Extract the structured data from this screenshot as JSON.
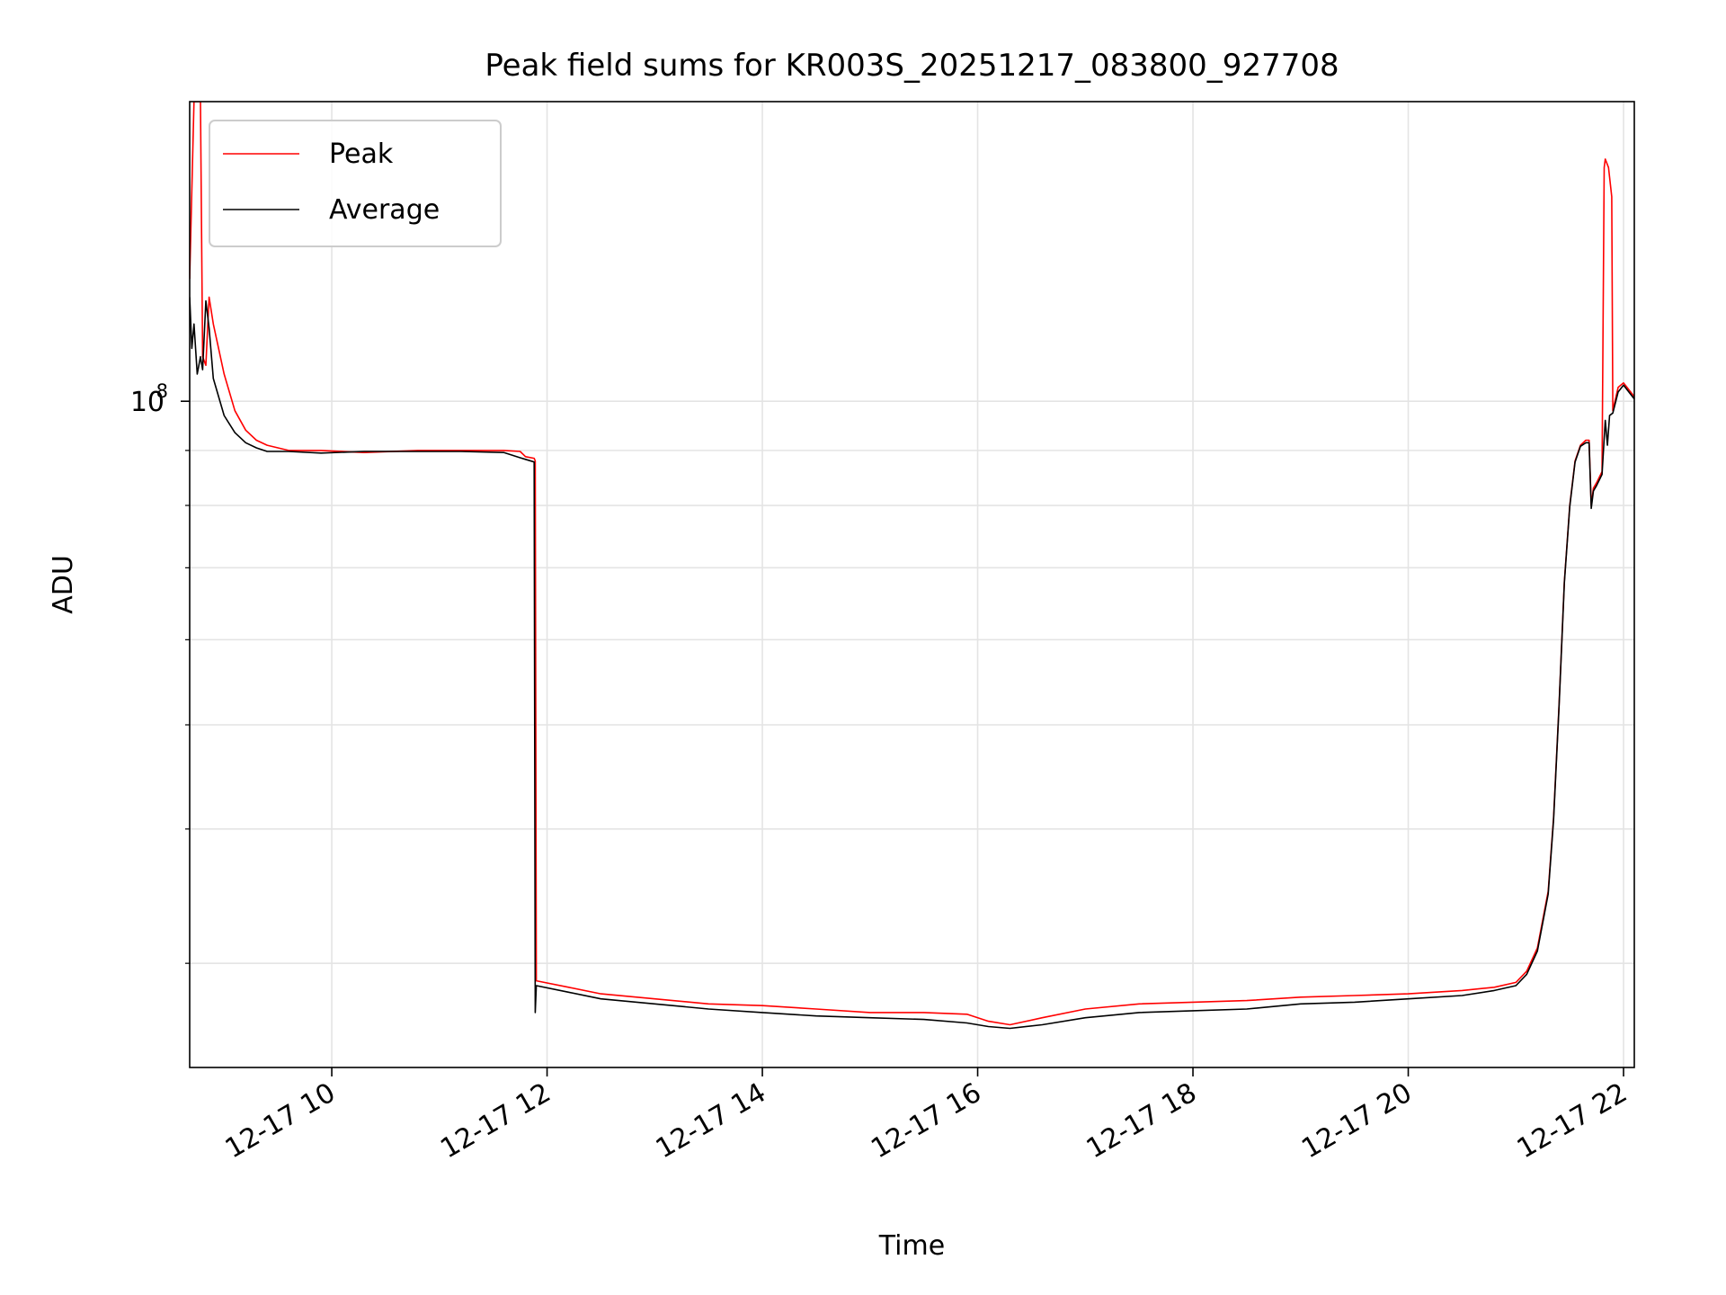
{
  "chart_data": {
    "type": "line",
    "title": "Peak field sums for KR003S_20251217_083800_927708",
    "xlabel": "Time",
    "ylabel": "ADU",
    "yscale": "log",
    "ylim": [
      24000000,
      190000000
    ],
    "xlim": [
      8.68,
      22.1
    ],
    "x_unit": "hours on 12-17",
    "grid": true,
    "legend_position": "upper-left",
    "y_major_ticks": [
      {
        "value": 100000000,
        "base": "10",
        "exponent": "8"
      }
    ],
    "y_minor_ticks": [
      30000000,
      40000000,
      50000000,
      60000000,
      70000000,
      80000000,
      90000000
    ],
    "x_ticks": [
      {
        "value": 10,
        "label": "12-17 10"
      },
      {
        "value": 12,
        "label": "12-17 12"
      },
      {
        "value": 14,
        "label": "12-17 14"
      },
      {
        "value": 16,
        "label": "12-17 16"
      },
      {
        "value": 18,
        "label": "12-17 18"
      },
      {
        "value": 20,
        "label": "12-17 20"
      },
      {
        "value": 22,
        "label": "12-17 22"
      }
    ],
    "series": [
      {
        "name": "Peak",
        "color": "#ff0000",
        "x": [
          8.68,
          8.72,
          8.75,
          8.78,
          8.8,
          8.83,
          8.86,
          8.9,
          9.0,
          9.1,
          9.2,
          9.3,
          9.4,
          9.6,
          9.9,
          10.3,
          10.8,
          11.2,
          11.6,
          11.75,
          11.8,
          11.88,
          11.89,
          11.9,
          12.2,
          12.5,
          13.0,
          13.5,
          14.0,
          14.5,
          15.0,
          15.5,
          15.9,
          16.1,
          16.3,
          16.6,
          17.0,
          17.5,
          18.0,
          18.5,
          19.0,
          19.5,
          20.0,
          20.5,
          20.8,
          21.0,
          21.1,
          21.2,
          21.3,
          21.35,
          21.4,
          21.45,
          21.5,
          21.55,
          21.6,
          21.65,
          21.68,
          21.7,
          21.72,
          21.75,
          21.8,
          21.82,
          21.83,
          21.86,
          21.89,
          21.9,
          21.95,
          22.0,
          22.1
        ],
        "values": [
          130000000,
          190000000,
          190000000,
          190000000,
          110000000,
          108000000,
          125000000,
          118000000,
          106000000,
          98000000,
          94000000,
          92000000,
          91000000,
          90000000,
          90000000,
          89600000,
          90000000,
          90000000,
          90000000,
          89800000,
          88800000,
          88500000,
          88000000,
          28900000,
          28500000,
          28100000,
          27800000,
          27500000,
          27400000,
          27200000,
          27000000,
          27000000,
          26900000,
          26500000,
          26300000,
          26700000,
          27200000,
          27500000,
          27600000,
          27700000,
          27900000,
          28000000,
          28100000,
          28300000,
          28500000,
          28800000,
          29500000,
          31000000,
          35000000,
          41000000,
          52000000,
          68000000,
          80000000,
          88000000,
          91000000,
          92000000,
          92000000,
          80000000,
          83000000,
          84000000,
          86000000,
          165000000,
          168000000,
          165000000,
          155000000,
          98000000,
          103000000,
          104000000,
          101000000
        ]
      },
      {
        "name": "Average",
        "color": "#000000",
        "x": [
          8.68,
          8.7,
          8.72,
          8.75,
          8.78,
          8.8,
          8.83,
          8.86,
          8.9,
          9.0,
          9.1,
          9.2,
          9.3,
          9.4,
          9.6,
          9.9,
          10.3,
          10.8,
          11.2,
          11.6,
          11.75,
          11.8,
          11.88,
          11.89,
          11.9,
          12.2,
          12.5,
          13.0,
          13.5,
          14.0,
          14.5,
          15.0,
          15.5,
          15.9,
          16.1,
          16.3,
          16.6,
          17.0,
          17.5,
          18.0,
          18.5,
          19.0,
          19.5,
          20.0,
          20.5,
          20.8,
          21.0,
          21.1,
          21.2,
          21.3,
          21.35,
          21.4,
          21.45,
          21.5,
          21.55,
          21.6,
          21.65,
          21.68,
          21.7,
          21.72,
          21.75,
          21.8,
          21.83,
          21.85,
          21.87,
          21.9,
          21.95,
          22.0,
          22.1
        ],
        "values": [
          125000000,
          112000000,
          118000000,
          106000000,
          110000000,
          107000000,
          124000000,
          117000000,
          105000000,
          97000000,
          93500000,
          91500000,
          90500000,
          89800000,
          89800000,
          89500000,
          89800000,
          89800000,
          89800000,
          89600000,
          88600000,
          88300000,
          87800000,
          27000000,
          28600000,
          28200000,
          27800000,
          27500000,
          27200000,
          27000000,
          26800000,
          26700000,
          26600000,
          26400000,
          26200000,
          26100000,
          26300000,
          26700000,
          27000000,
          27100000,
          27200000,
          27500000,
          27600000,
          27800000,
          28000000,
          28300000,
          28600000,
          29300000,
          30800000,
          34800000,
          40800000,
          51800000,
          67800000,
          79800000,
          87800000,
          90800000,
          91500000,
          91500000,
          79500000,
          82500000,
          83500000,
          85500000,
          96000000,
          91000000,
          97000000,
          97500000,
          102000000,
          103500000,
          100500000
        ]
      }
    ]
  }
}
